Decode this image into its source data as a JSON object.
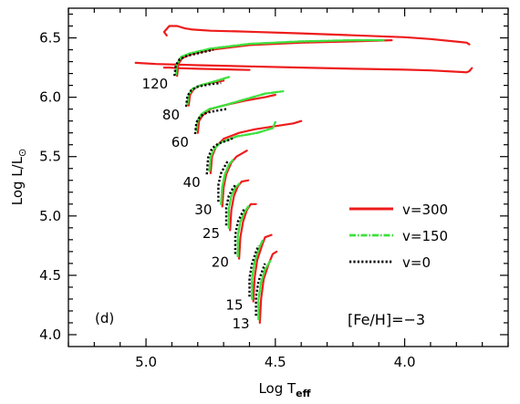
{
  "chart_data": {
    "type": "line",
    "xlabel": "Log T",
    "xlabel_subscript": "eff",
    "ylabel": "Log L/L",
    "ylabel_subscript": "⊙",
    "x_reversed": true,
    "xlim": [
      5.3,
      3.6
    ],
    "ylim": [
      3.9,
      6.75
    ],
    "x_ticks": [
      5.0,
      4.5,
      4.0
    ],
    "x_tick_labels": [
      "5.0",
      "4.5",
      "4.0"
    ],
    "y_ticks": [
      4.0,
      4.5,
      5.0,
      5.5,
      6.0,
      6.5
    ],
    "y_tick_labels": [
      "4.0",
      "4.5",
      "5.0",
      "5.5",
      "6.0",
      "6.5"
    ],
    "panel_label": "(d)",
    "metallicity_label": "[Fe/H]=−3",
    "legend_position": "lower-right",
    "series": [
      {
        "name": "v=300",
        "color": "#ee1c1c",
        "style": "solid"
      },
      {
        "name": "v=150",
        "color": "#3ee03e",
        "style": "dashdot"
      },
      {
        "name": "v=0",
        "color": "#000000",
        "style": "dotted"
      }
    ],
    "tracks": [
      {
        "mass": "13",
        "v300": [
          [
            4.56,
            4.1
          ],
          [
            4.555,
            4.3
          ],
          [
            4.545,
            4.47
          ],
          [
            4.525,
            4.6
          ],
          [
            4.51,
            4.68
          ],
          [
            4.495,
            4.7
          ]
        ],
        "v150": [
          [
            4.565,
            4.13
          ],
          [
            4.565,
            4.3
          ],
          [
            4.555,
            4.44
          ],
          [
            4.54,
            4.55
          ],
          [
            4.52,
            4.62
          ]
        ],
        "v0": [
          [
            4.575,
            4.16
          ],
          [
            4.575,
            4.32
          ],
          [
            4.565,
            4.45
          ],
          [
            4.55,
            4.54
          ],
          [
            4.54,
            4.6
          ]
        ]
      },
      {
        "mass": "15",
        "v300": [
          [
            4.585,
            4.28
          ],
          [
            4.58,
            4.48
          ],
          [
            4.57,
            4.63
          ],
          [
            4.55,
            4.76
          ],
          [
            4.54,
            4.82
          ],
          [
            4.515,
            4.84
          ]
        ],
        "v150": [
          [
            4.59,
            4.3
          ],
          [
            4.59,
            4.48
          ],
          [
            4.58,
            4.61
          ],
          [
            4.565,
            4.72
          ],
          [
            4.55,
            4.79
          ]
        ],
        "v0": [
          [
            4.6,
            4.32
          ],
          [
            4.6,
            4.48
          ],
          [
            4.59,
            4.6
          ],
          [
            4.575,
            4.7
          ],
          [
            4.565,
            4.75
          ]
        ]
      },
      {
        "mass": "20",
        "v300": [
          [
            4.64,
            4.64
          ],
          [
            4.635,
            4.82
          ],
          [
            4.625,
            4.95
          ],
          [
            4.61,
            5.05
          ],
          [
            4.595,
            5.1
          ],
          [
            4.575,
            5.1
          ]
        ],
        "v150": [
          [
            4.645,
            4.66
          ],
          [
            4.645,
            4.83
          ],
          [
            4.635,
            4.95
          ],
          [
            4.62,
            5.03
          ],
          [
            4.605,
            5.08
          ]
        ],
        "v0": [
          [
            4.655,
            4.68
          ],
          [
            4.655,
            4.84
          ],
          [
            4.645,
            4.95
          ],
          [
            4.63,
            5.02
          ],
          [
            4.62,
            5.06
          ]
        ]
      },
      {
        "mass": "25",
        "v300": [
          [
            4.675,
            4.88
          ],
          [
            4.67,
            5.05
          ],
          [
            4.66,
            5.17
          ],
          [
            4.645,
            5.25
          ],
          [
            4.63,
            5.29
          ],
          [
            4.605,
            5.3
          ]
        ],
        "v150": [
          [
            4.68,
            4.9
          ],
          [
            4.68,
            5.06
          ],
          [
            4.67,
            5.17
          ],
          [
            4.655,
            5.24
          ],
          [
            4.64,
            5.27
          ]
        ],
        "v0": [
          [
            4.69,
            4.92
          ],
          [
            4.69,
            5.07
          ],
          [
            4.68,
            5.17
          ],
          [
            4.665,
            5.23
          ],
          [
            4.655,
            5.26
          ]
        ]
      },
      {
        "mass": "30",
        "v300": [
          [
            4.705,
            5.08
          ],
          [
            4.7,
            5.24
          ],
          [
            4.69,
            5.35
          ],
          [
            4.67,
            5.45
          ],
          [
            4.65,
            5.5
          ],
          [
            4.61,
            5.55
          ]
        ],
        "v150": [
          [
            4.71,
            5.1
          ],
          [
            4.705,
            5.25
          ],
          [
            4.695,
            5.35
          ],
          [
            4.68,
            5.43
          ],
          [
            4.665,
            5.47
          ]
        ],
        "v0": [
          [
            4.72,
            5.12
          ],
          [
            4.72,
            5.26
          ],
          [
            4.71,
            5.36
          ],
          [
            4.695,
            5.42
          ],
          [
            4.685,
            5.46
          ]
        ]
      },
      {
        "mass": "40",
        "v300": [
          [
            4.75,
            5.36
          ],
          [
            4.745,
            5.5
          ],
          [
            4.73,
            5.58
          ],
          [
            4.7,
            5.65
          ],
          [
            4.64,
            5.7
          ],
          [
            4.58,
            5.73
          ],
          [
            4.52,
            5.75
          ],
          [
            4.43,
            5.78
          ],
          [
            4.4,
            5.8
          ]
        ],
        "v150": [
          [
            4.755,
            5.38
          ],
          [
            4.75,
            5.5
          ],
          [
            4.735,
            5.57
          ],
          [
            4.71,
            5.62
          ],
          [
            4.65,
            5.67
          ],
          [
            4.57,
            5.7
          ],
          [
            4.51,
            5.74
          ],
          [
            4.5,
            5.79
          ]
        ],
        "v0": [
          [
            4.765,
            5.35
          ],
          [
            4.76,
            5.49
          ],
          [
            4.745,
            5.57
          ],
          [
            4.72,
            5.61
          ],
          [
            4.68,
            5.64
          ],
          [
            4.66,
            5.66
          ]
        ]
      },
      {
        "mass": "60",
        "v300": [
          [
            4.8,
            5.7
          ],
          [
            4.795,
            5.8
          ],
          [
            4.78,
            5.85
          ],
          [
            4.75,
            5.9
          ],
          [
            4.7,
            5.93
          ],
          [
            4.62,
            5.97
          ],
          [
            4.54,
            6.0
          ],
          [
            4.5,
            6.02
          ]
        ],
        "v150": [
          [
            4.805,
            5.72
          ],
          [
            4.8,
            5.81
          ],
          [
            4.785,
            5.86
          ],
          [
            4.755,
            5.9
          ],
          [
            4.7,
            5.93
          ],
          [
            4.62,
            5.98
          ],
          [
            4.54,
            6.03
          ],
          [
            4.47,
            6.05
          ]
        ],
        "v0": [
          [
            4.81,
            5.69
          ],
          [
            4.805,
            5.79
          ],
          [
            4.79,
            5.84
          ],
          [
            4.765,
            5.87
          ],
          [
            4.72,
            5.89
          ],
          [
            4.69,
            5.9
          ]
        ]
      },
      {
        "mass": "80",
        "v300": [
          [
            4.835,
            5.93
          ],
          [
            4.83,
            6.02
          ],
          [
            4.815,
            6.07
          ],
          [
            4.79,
            6.1
          ],
          [
            4.75,
            6.12
          ],
          [
            4.7,
            6.14
          ]
        ],
        "v150": [
          [
            4.84,
            5.94
          ],
          [
            4.835,
            6.02
          ],
          [
            4.82,
            6.07
          ],
          [
            4.79,
            6.1
          ],
          [
            4.74,
            6.13
          ],
          [
            4.68,
            6.17
          ]
        ],
        "v0": [
          [
            4.845,
            5.92
          ],
          [
            4.84,
            6.01
          ],
          [
            4.825,
            6.06
          ],
          [
            4.8,
            6.09
          ],
          [
            4.75,
            6.11
          ],
          [
            4.71,
            6.12
          ]
        ]
      },
      {
        "mass": "120",
        "v300": [
          [
            4.88,
            6.18
          ],
          [
            4.875,
            6.28
          ],
          [
            4.86,
            6.33
          ],
          [
            4.83,
            6.36
          ],
          [
            4.75,
            6.4
          ],
          [
            4.6,
            6.44
          ],
          [
            4.4,
            6.46
          ],
          [
            4.2,
            6.47
          ],
          [
            4.05,
            6.48
          ]
        ],
        "v150": [
          [
            4.885,
            6.19
          ],
          [
            4.88,
            6.28
          ],
          [
            4.865,
            6.34
          ],
          [
            4.83,
            6.37
          ],
          [
            4.75,
            6.41
          ],
          [
            4.6,
            6.45
          ],
          [
            4.4,
            6.47
          ],
          [
            4.2,
            6.48
          ],
          [
            4.08,
            6.48
          ]
        ],
        "v0": [
          [
            4.89,
            6.18
          ],
          [
            4.885,
            6.27
          ],
          [
            4.87,
            6.32
          ],
          [
            4.84,
            6.35
          ],
          [
            4.78,
            6.38
          ],
          [
            4.74,
            6.4
          ]
        ]
      }
    ],
    "extended_tracks_v300": [
      [
        [
          4.65,
          6.555
        ],
        [
          4.6,
          6.552
        ],
        [
          4.4,
          6.538
        ],
        [
          4.2,
          6.522
        ],
        [
          4.0,
          6.506
        ],
        [
          3.9,
          6.49
        ],
        [
          3.76,
          6.46
        ],
        [
          3.75,
          6.445
        ]
      ],
      [
        [
          5.04,
          6.29
        ],
        [
          4.96,
          6.28
        ],
        [
          4.8,
          6.27
        ],
        [
          4.6,
          6.26
        ],
        [
          4.4,
          6.25
        ],
        [
          4.2,
          6.24
        ],
        [
          4.0,
          6.232
        ],
        [
          3.9,
          6.226
        ],
        [
          3.76,
          6.21
        ],
        [
          3.75,
          6.22
        ],
        [
          3.74,
          6.245
        ]
      ],
      [
        [
          4.92,
          6.52
        ],
        [
          4.93,
          6.55
        ],
        [
          4.91,
          6.6
        ],
        [
          4.88,
          6.6
        ],
        [
          4.85,
          6.58
        ],
        [
          4.82,
          6.57
        ],
        [
          4.75,
          6.56
        ],
        [
          4.65,
          6.555
        ]
      ],
      [
        [
          4.93,
          6.25
        ],
        [
          4.91,
          6.25
        ],
        [
          4.88,
          6.245
        ],
        [
          4.8,
          6.24
        ],
        [
          4.7,
          6.235
        ],
        [
          4.6,
          6.23
        ]
      ]
    ]
  }
}
